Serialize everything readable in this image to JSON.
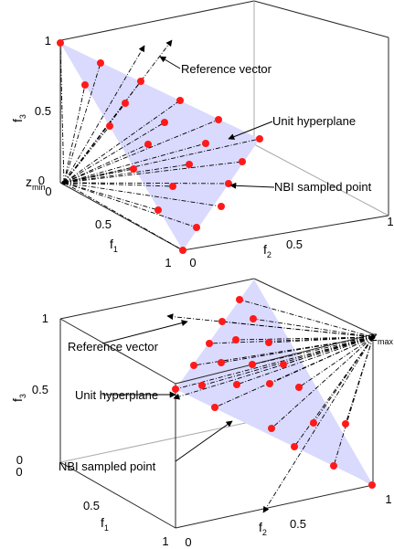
{
  "colors": {
    "plane_fill": "#d9dafd",
    "point": "#ff1a1a",
    "box": "#262626",
    "grid": "#aaaaaa",
    "text": "#000000"
  },
  "panels": [
    {
      "id": "top",
      "corner_symbol": "z",
      "corner_subscript": "min",
      "axes": {
        "f1": {
          "label": "f",
          "sub": "1",
          "ticks": [
            "0.5",
            "1"
          ]
        },
        "f2": {
          "label": "f",
          "sub": "2",
          "ticks": [
            "0",
            "0.5",
            "1"
          ]
        },
        "f3": {
          "label": "f",
          "sub": "3",
          "ticks": [
            "0",
            "0.5",
            "1"
          ]
        },
        "f1_zero": "0"
      },
      "annotations": [
        {
          "key": "reference",
          "text": "Reference vector"
        },
        {
          "key": "hyperplane",
          "text": "Unit hyperplane"
        },
        {
          "key": "nbi",
          "text": "NBI sampled point"
        }
      ]
    },
    {
      "id": "bottom",
      "corner_symbol": "z",
      "corner_subscript": "max",
      "axes": {
        "f1": {
          "label": "f",
          "sub": "1",
          "ticks": [
            "0.5",
            "1"
          ]
        },
        "f2": {
          "label": "f",
          "sub": "2",
          "ticks": [
            "0",
            "0.5",
            "1"
          ]
        },
        "f3": {
          "label": "f",
          "sub": "3",
          "ticks": [
            "0",
            "0.5",
            "1"
          ]
        },
        "f1_zero": "0"
      },
      "annotations": [
        {
          "key": "reference",
          "text": "Reference vector"
        },
        {
          "key": "hyperplane",
          "text": "Unit hyperplane"
        },
        {
          "key": "nbi",
          "text": "NBI sampled point"
        }
      ]
    }
  ]
}
